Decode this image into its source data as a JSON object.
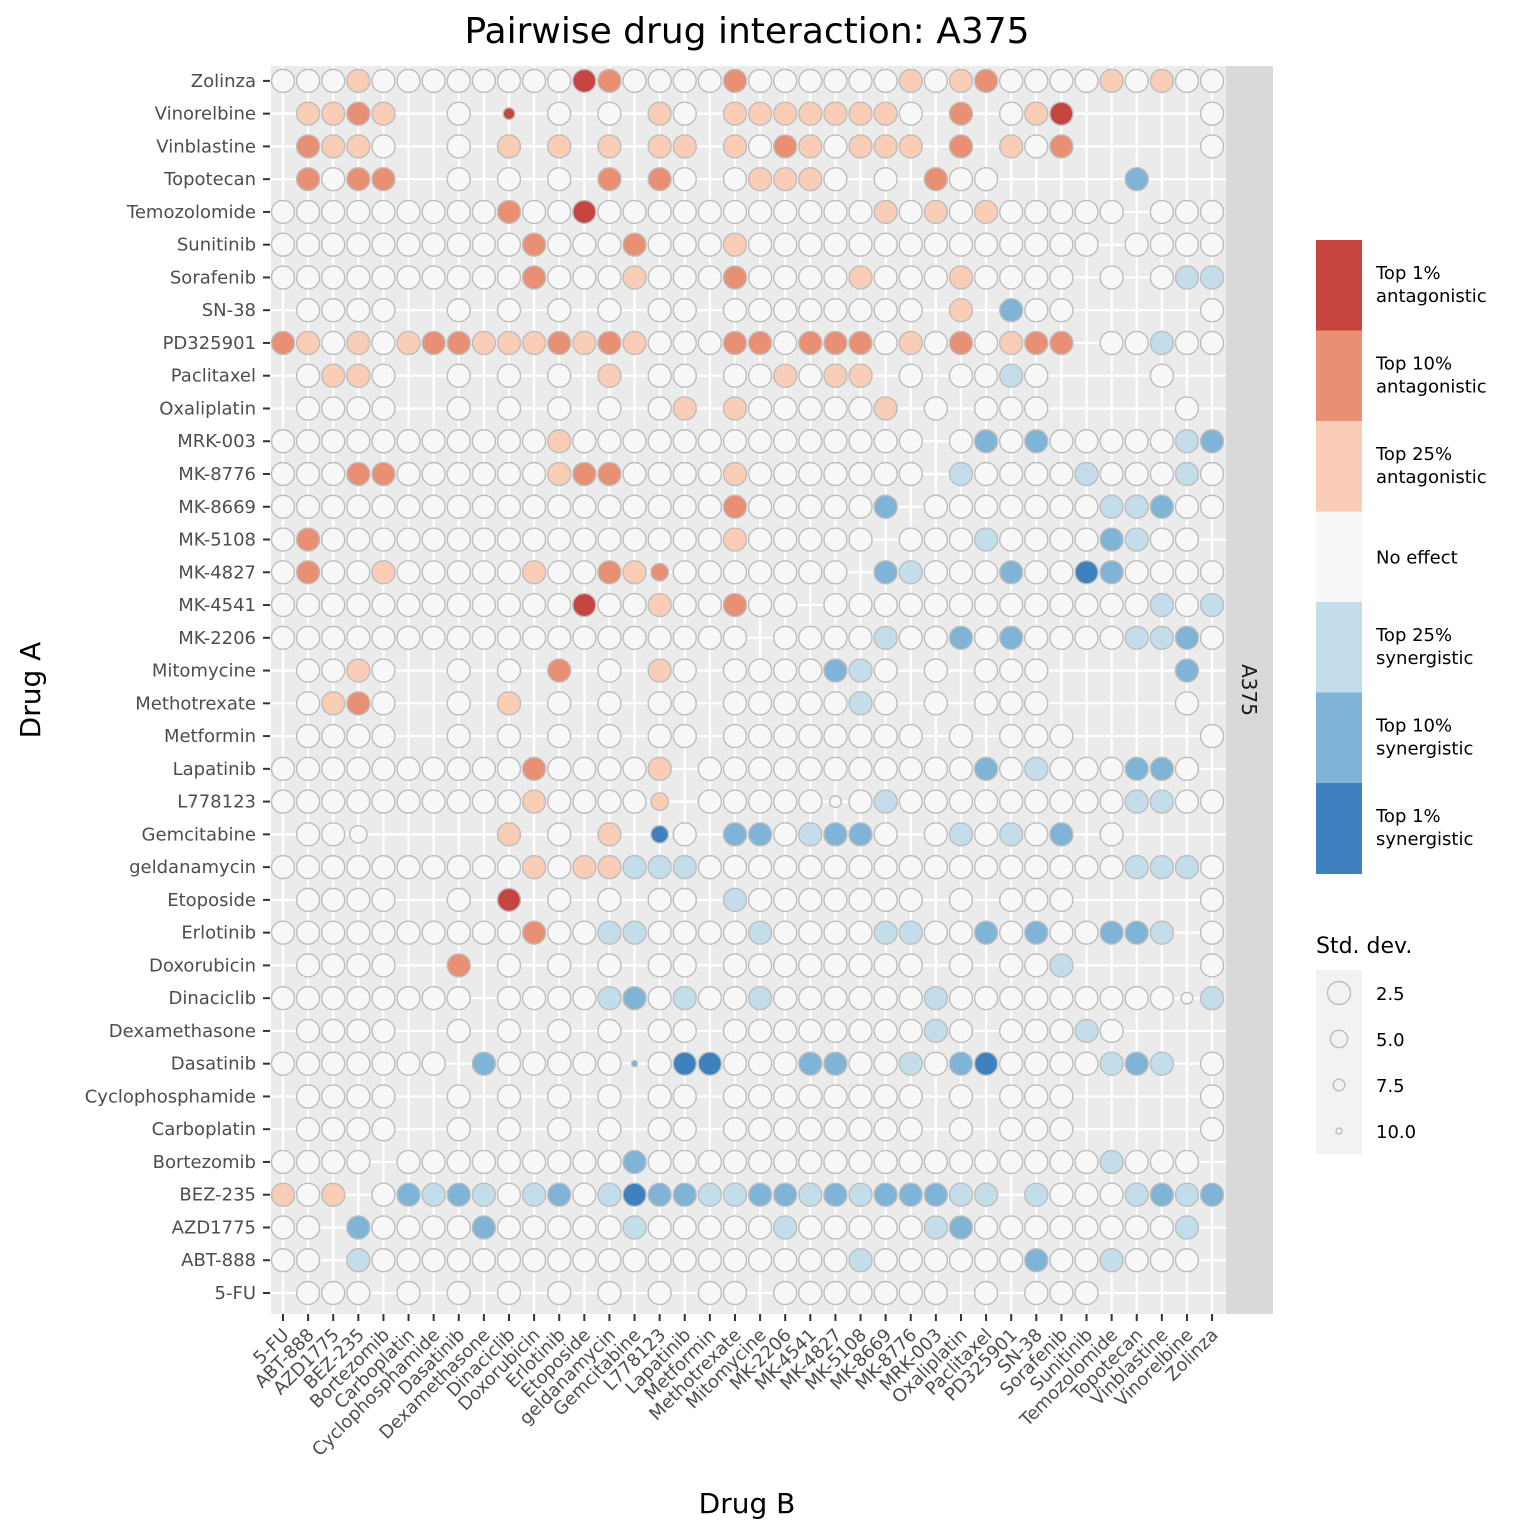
{
  "chart_data": {
    "type": "scatter",
    "title": "Pairwise drug interaction:  A375",
    "xlabel": "Drug B",
    "ylabel": "Drug A",
    "facet_label": "A375",
    "drugs": [
      "5-FU",
      "ABT-888",
      "AZD1775",
      "BEZ-235",
      "Bortezomib",
      "Carboplatin",
      "Cyclophosphamide",
      "Dasatinib",
      "Dexamethasone",
      "Dinaciclib",
      "Doxorubicin",
      "Erlotinib",
      "Etoposide",
      "geldanamycin",
      "Gemcitabine",
      "L778123",
      "Lapatinib",
      "Metformin",
      "Methotrexate",
      "Mitomycine",
      "MK-2206",
      "MK-4541",
      "MK-4827",
      "MK-5108",
      "MK-8669",
      "MK-8776",
      "MRK-003",
      "Oxaliplatin",
      "Paclitaxel",
      "PD325901",
      "SN-38",
      "Sorafenib",
      "Sunitinib",
      "Temozolomide",
      "Topotecan",
      "Vinblastine",
      "Vinorelbine",
      "Zolinza"
    ],
    "color_scale": {
      "title": "",
      "categories": [
        {
          "code": 3,
          "label_lines": [
            "Top 1%",
            "antagonistic"
          ],
          "color": "#C74540"
        },
        {
          "code": 2,
          "label_lines": [
            "Top 10%",
            "antagonistic"
          ],
          "color": "#E99074"
        },
        {
          "code": 1,
          "label_lines": [
            "Top 25%",
            "antagonistic"
          ],
          "color": "#F9CDB6"
        },
        {
          "code": 0,
          "label_lines": [
            "No effect"
          ],
          "color": "#F7F7F7"
        },
        {
          "code": -1,
          "label_lines": [
            "Top 25%",
            "synergistic"
          ],
          "color": "#C4DDEB"
        },
        {
          "code": -2,
          "label_lines": [
            "Top 10%",
            "synergistic"
          ],
          "color": "#7FB4D7"
        },
        {
          "code": -3,
          "label_lines": [
            "Top 1%",
            "synergistic"
          ],
          "color": "#3F80BE"
        }
      ]
    },
    "size_scale": {
      "title": "Std. dev.",
      "breaks": [
        "2.5",
        "5.0",
        "7.5",
        "10.0"
      ]
    },
    "rows": [
      {
        "drug_a": "5-FU",
        "effects": "_000_0_0_0_0_0_0_00_0000000_0_000_____0",
        "sd": {}
      },
      {
        "drug_a": "ABT-888",
        "effects": "00_-10000000000000000000-1000000-200-1000",
        "sd": {}
      },
      {
        "drug_a": "AZD1775",
        "effects": "00_-20000-200000-100000-100000-1-200000000-1",
        "sd": {}
      },
      {
        "drug_a": "BEZ-235",
        "effects": "101_0-2-1-2-10-1-20-1-3-2-2-1-1-2-2-1-2-1-2-2-2-1-1_-1000-1-2-1-20",
        "sd": {}
      },
      {
        "drug_a": "Bortezomib",
        "effects": "0000_000000000-2000000000000000000-1000",
        "sd": {}
      },
      {
        "drug_a": "Carboplatin",
        "effects": "_0000__0_0_0_0_00_00000000_0_000_____0",
        "sd": {}
      },
      {
        "drug_a": "Cyclophosphamide",
        "effects": "_0000__0_0_0_0_00_00000000_0_000_____0",
        "sd": {}
      },
      {
        "drug_a": "Dasatinib",
        "effects": "0000000_-200000-20-3-3000-2-200-10-2-30000-1-2-1_0-1000-100",
        "sd": {
          "14": 10.0
        }
      },
      {
        "drug_a": "Dexamethasone",
        "effects": "_0000__0_0_0_0_00_00000000-10_000-10____0",
        "sd": {}
      },
      {
        "drug_a": "Dinaciclib",
        "effects": "00000000_0000-1-20-100-1000000-10000000000-100",
        "sd": {
          "36": 7.5
        }
      },
      {
        "drug_a": "Doxorubicin",
        "effects": "_0000__2_0_0_0_00_00000000_0_00-1_____0",
        "sd": {}
      },
      {
        "drug_a": "Erlotinib",
        "effects": "0000000000200-1-10000-10000-1-100-20-200-2-2-1_0",
        "sd": {}
      },
      {
        "drug_a": "Etoposide",
        "effects": "_0000__0_3_0_0_00_-10000000_0_000_____0",
        "sd": {}
      },
      {
        "drug_a": "geldanamycin",
        "effects": "00000000001011-1-1-100000000000000000-1-1-10",
        "sd": {}
      },
      {
        "drug_a": "Gemcitabine",
        "effects": "_000_____1_0_1_-30_-2-20-1-2-20_0-10-10-2_0____-2",
        "sd": {
          "3": 5.0,
          "4": 7.5,
          "7": 10.0,
          "15": 5.0,
          "32": 5.0
        }
      },
      {
        "drug_a": "L778123",
        "effects": "0000000000100001_0000000-1000000000-1-1000",
        "sd": {
          "15": 5.0,
          "22": 7.5
        }
      },
      {
        "drug_a": "Lapatinib",
        "effects": "0000000000200001_00000000000-20-1000-2-20",
        "sd": {}
      },
      {
        "drug_a": "Metformin",
        "effects": "_0000__0_0_0_0_00_00000000_0_000_____0",
        "sd": {}
      },
      {
        "drug_a": "Methotrexate",
        "effects": "_0120__0_1_0_0_00_00000-10_0_000_____0",
        "sd": {}
      },
      {
        "drug_a": "Mitomycine",
        "effects": "_0010__0_0_2_0_10_0000-2-10_0_000_____-2",
        "sd": {}
      },
      {
        "drug_a": "MK-2206",
        "effects": "0000000000000000000_0000-100-20-20000-1-1-20",
        "sd": {}
      },
      {
        "drug_a": "MK-4541",
        "effects": "000000000000300100200_0000000000000-10-10",
        "sd": {}
      },
      {
        "drug_a": "MK-4827",
        "effects": "02001000001002120000000_-2-1000-200-3-20000-1",
        "sd": {
          "15": 5.0
        }
      },
      {
        "drug_a": "MK-5108",
        "effects": "020000000000000000100000_000-10000-2-100",
        "sd": {}
      },
      {
        "drug_a": "MK-8669",
        "effects": "000000000000000000200000-2_0000000-1-1-20000",
        "sd": {}
      },
      {
        "drug_a": "MK-8776",
        "effects": "00022000000122000010000000_-10000-1000-10-2",
        "sd": {}
      },
      {
        "drug_a": "MRK-003",
        "effects": "00000000000100000000000000_0-20-200000-1-2-20",
        "sd": {}
      },
      {
        "drug_a": "Oxaliplatin",
        "effects": "_0000__0_0_0_0_01_1000001_0_000_____0",
        "sd": {}
      },
      {
        "drug_a": "Paclitaxel",
        "effects": "_0110__0_0_0_1_00_001011_0_00-10____0",
        "sd": {}
      },
      {
        "drug_a": "PD325901",
        "effects": "21010122111212100022022201020122_00-1000000",
        "sd": {}
      },
      {
        "drug_a": "SN-38",
        "effects": "_0000__0_0_0_0_00_00000000_1_-200_____0",
        "sd": {}
      },
      {
        "drug_a": "Sorafenib",
        "effects": "00000000002000100020000100010000_0_0-1-100",
        "sd": {}
      },
      {
        "drug_a": "Sunitinib",
        "effects": "000000000020002000100000000000000_0000",
        "sd": {}
      },
      {
        "drug_a": "Temozolomide",
        "effects": "0000000002003000000000001010100000_0000",
        "sd": {}
      },
      {
        "drug_a": "Topotecan",
        "effects": "_2022__0_0_0_2_20_01110_0_200_____-2",
        "sd": {}
      },
      {
        "drug_a": "Vinblastine",
        "effects": "_2110__0_1_1_1_11_10210111_2_102_____0",
        "sd": {}
      },
      {
        "drug_a": "Vinorelbine",
        "effects": "_1121__0_3_0_0_10_11111110_2_013_____0",
        "sd": {
          "9": 7.5
        }
      },
      {
        "drug_a": "Zolinza",
        "effects": "00010000000032000020000001012000010100",
        "sd": {}
      }
    ]
  }
}
